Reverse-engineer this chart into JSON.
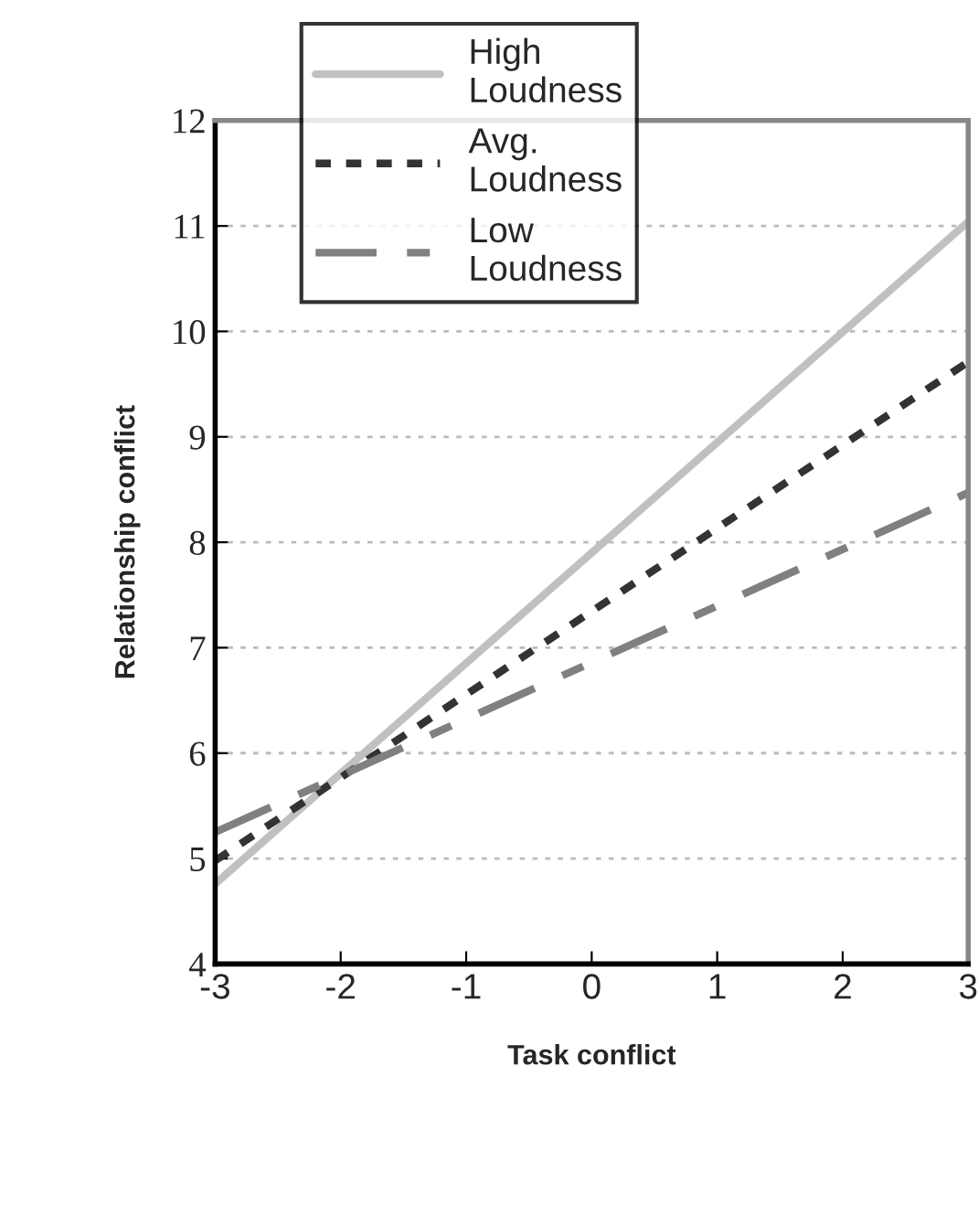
{
  "chart_data": {
    "type": "line",
    "xlabel": "Task conflict",
    "ylabel": "Relationship conflict",
    "xlim": [
      -3,
      3
    ],
    "xticks": [
      -3,
      -2,
      -1,
      0,
      1,
      2,
      3
    ],
    "ylim": [
      4,
      12
    ],
    "yticks": [
      4,
      5,
      6,
      7,
      8,
      9,
      10,
      11,
      12
    ],
    "grid": "y",
    "legend": "top left",
    "x": [
      -3,
      3
    ],
    "series": [
      {
        "name": "High Loudness",
        "color": "#c0c0c0",
        "line_style": "solid",
        "values": [
          4.76,
          11.04
        ]
      },
      {
        "name": "Avg. Loudness",
        "color": "#333333",
        "line_style": "dotted",
        "values": [
          4.98,
          9.71
        ]
      },
      {
        "name": "Low Loudness",
        "color": "#808080",
        "line_style": "dashed",
        "values": [
          5.25,
          8.47
        ]
      }
    ]
  }
}
